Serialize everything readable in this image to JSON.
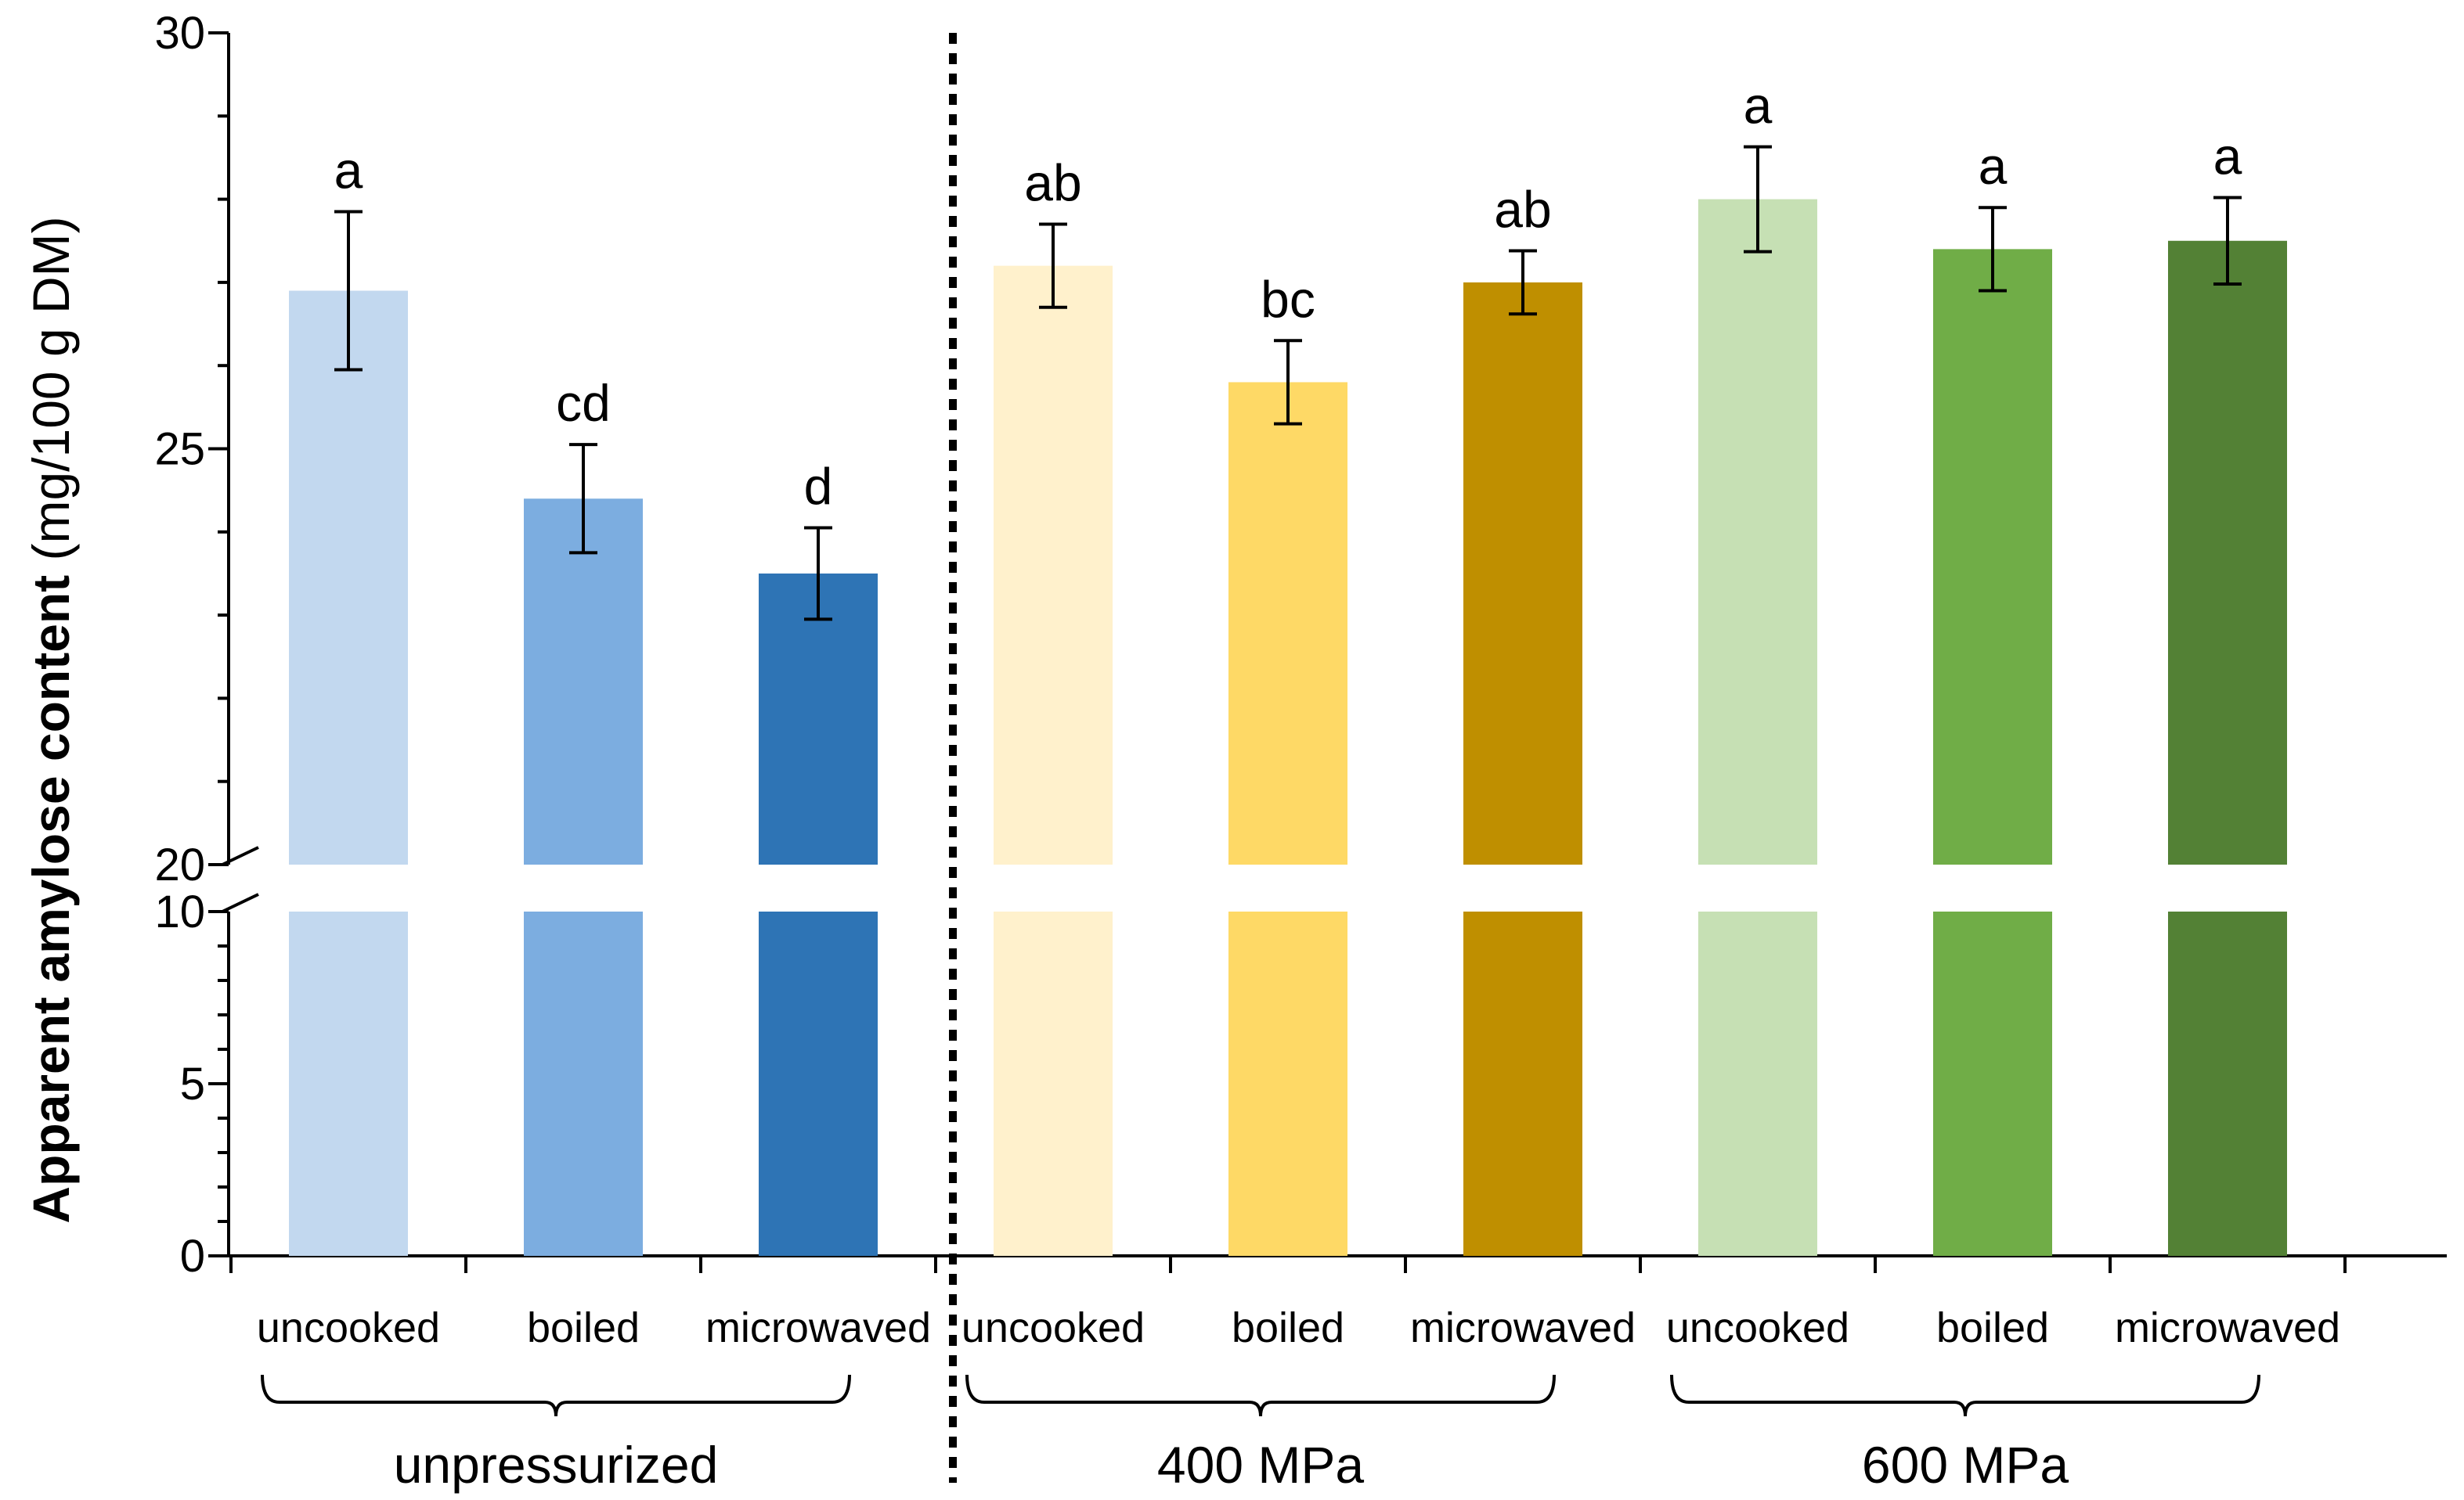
{
  "chart_data": {
    "type": "bar",
    "title": "",
    "xlabel": "",
    "ylabel_bold": "Apparent amylose content",
    "ylabel_unit": " (mg/100 g DM)",
    "ylim_lower": [
      0,
      10
    ],
    "ylim_upper": [
      20,
      30
    ],
    "axis_break": [
      10,
      20
    ],
    "yticks_lower": [
      0,
      5,
      10
    ],
    "yticks_upper": [
      20,
      25,
      30
    ],
    "yticks_lower_labels": [
      "0",
      "5",
      "10"
    ],
    "yticks_upper_labels": [
      "20",
      "25",
      "30"
    ],
    "categories": [
      "uncooked",
      "boiled",
      "microwaved",
      "uncooked",
      "boiled",
      "microwaved",
      "uncooked",
      "boiled",
      "microwaved"
    ],
    "values": [
      26.9,
      24.4,
      23.5,
      27.2,
      25.8,
      27.0,
      28.0,
      27.4,
      27.5
    ],
    "errors": [
      0.95,
      0.65,
      0.55,
      0.5,
      0.5,
      0.38,
      0.63,
      0.5,
      0.52
    ],
    "significance": [
      "a",
      "cd",
      "d",
      "ab",
      "bc",
      "ab",
      "a",
      "a",
      "a"
    ],
    "colors": [
      "#c2d8ef",
      "#7cade0",
      "#2e74b5",
      "#fff1cc",
      "#fed966",
      "#bf8f00",
      "#c6e0b4",
      "#70ad47",
      "#538135"
    ],
    "groups": [
      {
        "name": "unpressurized",
        "start": 0,
        "end": 2
      },
      {
        "name": "400 MPa",
        "start": 3,
        "end": 5
      },
      {
        "name": "600 MPa",
        "start": 6,
        "end": 8
      }
    ],
    "separator": "dotted line between unpressurized and 400 MPa groups"
  }
}
